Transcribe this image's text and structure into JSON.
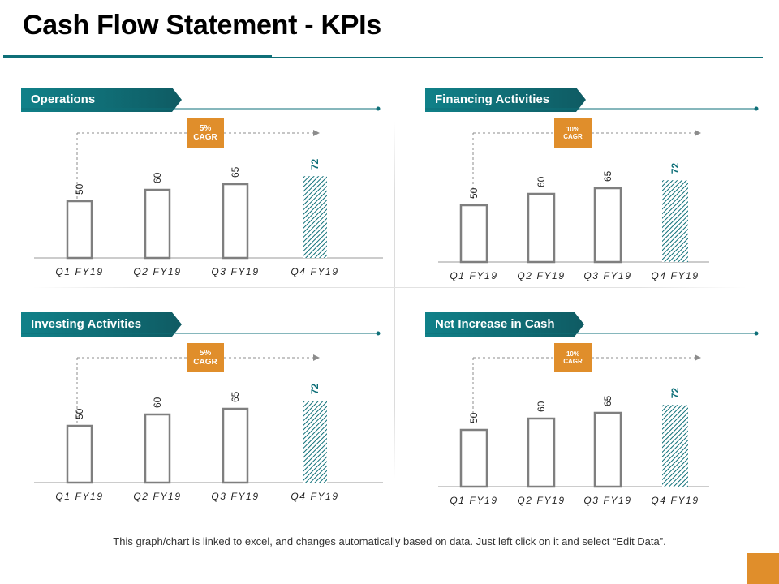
{
  "title": "Cash Flow Statement - KPIs",
  "footnote": "This graph/chart is linked to excel, and changes automatically based on data. Just left click on it and select “Edit Data”.",
  "colors": {
    "teal_dark": "#0e6f78",
    "banner_gradient_start": "#108189",
    "banner_gradient_end": "#0f5b63",
    "cagr_orange": "#e08e2b",
    "bar_outline": "#7f7f7f",
    "highlight_value": "#0e6f78"
  },
  "panels": [
    {
      "label": "Operations",
      "cagr_value": "5%",
      "cagr_word": "CAGR"
    },
    {
      "label": "Financing Activities",
      "cagr_value": "10%",
      "cagr_word": "CAGR"
    },
    {
      "label": "Investing Activities",
      "cagr_value": "5%",
      "cagr_word": "CAGR"
    },
    {
      "label": "Net Increase in Cash",
      "cagr_value": "10%",
      "cagr_word": "CAGR"
    }
  ],
  "chart_data": [
    {
      "type": "bar",
      "categories": [
        "Q1 FY19",
        "Q2 FY19",
        "Q3 FY19",
        "Q4 FY19"
      ],
      "values": [
        50,
        60,
        65,
        72
      ],
      "ylim": [
        0,
        72
      ],
      "highlight_last": true,
      "grid": false
    },
    {
      "type": "bar",
      "categories": [
        "Q1 FY19",
        "Q2 FY19",
        "Q3 FY19",
        "Q4 FY19"
      ],
      "values": [
        50,
        60,
        65,
        72
      ],
      "ylim": [
        0,
        72
      ],
      "highlight_last": true,
      "grid": false
    },
    {
      "type": "bar",
      "categories": [
        "Q1 FY19",
        "Q2 FY19",
        "Q3 FY19",
        "Q4 FY19"
      ],
      "values": [
        50,
        60,
        65,
        72
      ],
      "ylim": [
        0,
        72
      ],
      "highlight_last": true,
      "grid": false
    },
    {
      "type": "bar",
      "categories": [
        "Q1 FY19",
        "Q2 FY19",
        "Q3 FY19",
        "Q4 FY19"
      ],
      "values": [
        50,
        60,
        65,
        72
      ],
      "ylim": [
        0,
        72
      ],
      "highlight_last": true,
      "grid": false
    }
  ]
}
